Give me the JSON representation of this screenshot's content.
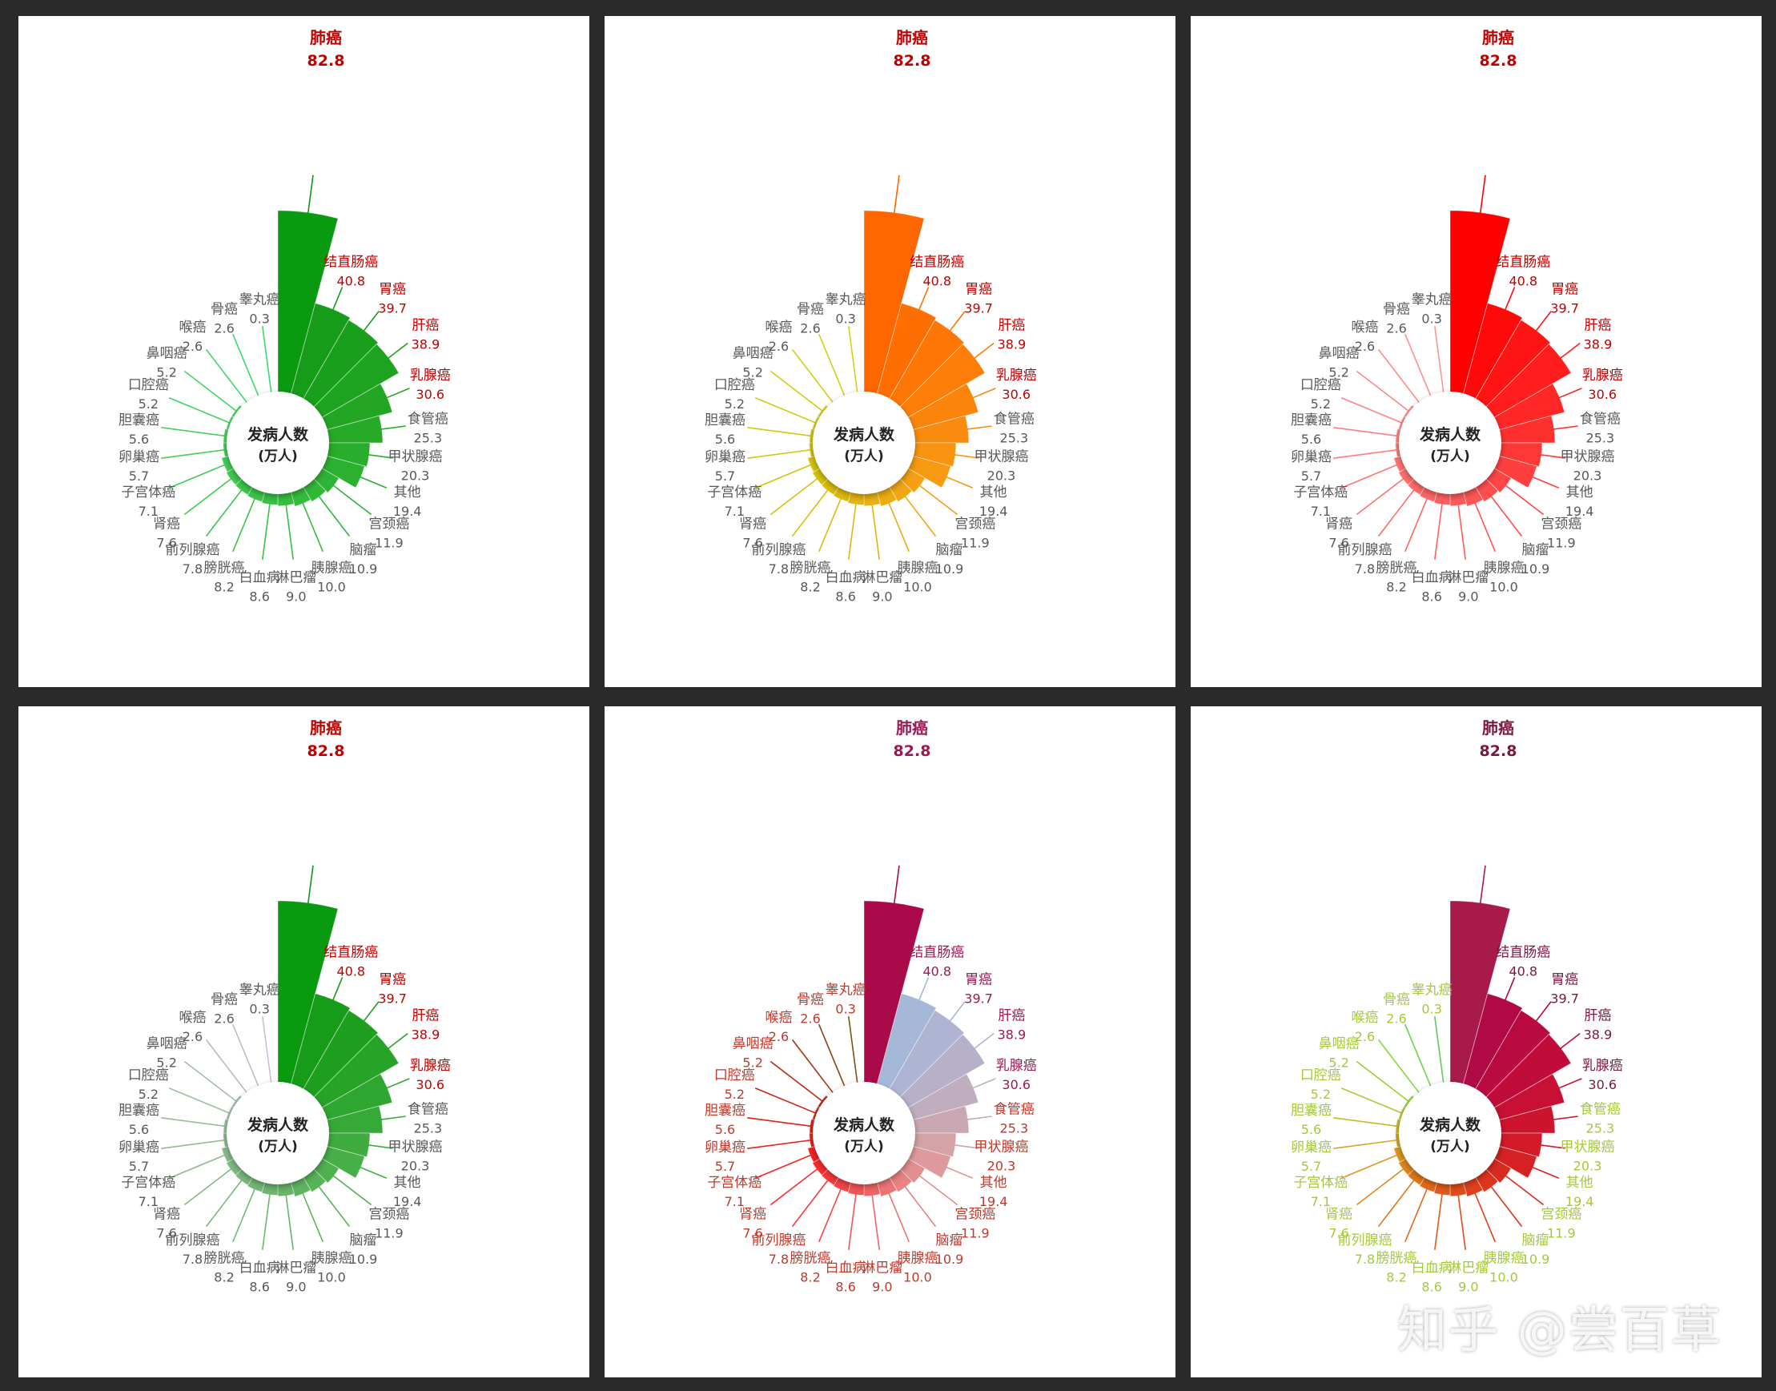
{
  "watermark": "知乎 @尝百草",
  "chart_data": {
    "type": "polar-bar",
    "center_title": "发病人数",
    "center_unit": "(万人)",
    "categories": [
      "肺癌",
      "结直肠癌",
      "胃癌",
      "肝癌",
      "乳腺癌",
      "食管癌",
      "甲状腺癌",
      "其他",
      "宫颈癌",
      "脑瘤",
      "胰腺癌",
      "淋巴瘤",
      "白血病",
      "膀胱癌",
      "前列腺癌",
      "肾癌",
      "子宫体癌",
      "卵巢癌",
      "胆囊癌",
      "口腔癌",
      "鼻咽癌",
      "喉癌",
      "骨癌",
      "睾丸癌"
    ],
    "value_labels": [
      "82.8",
      "40.8",
      "39.7",
      "38.9",
      "30.6",
      "25.3",
      "20.3",
      "19.4",
      "11.9",
      "10.9",
      "10.0",
      "9.0",
      "8.6",
      "8.2",
      "7.8",
      "7.6",
      "7.1",
      "5.7",
      "5.6",
      "5.2",
      "5.2",
      "2.6",
      "2.6",
      "0.3"
    ],
    "values": [
      82.8,
      40.8,
      39.7,
      38.9,
      30.6,
      25.3,
      20.3,
      19.4,
      11.9,
      10.9,
      10.0,
      9.0,
      8.6,
      8.2,
      7.8,
      7.6,
      7.1,
      5.7,
      5.6,
      5.2,
      5.2,
      2.6,
      2.6,
      0.3
    ],
    "panels": [
      {
        "label_colors": [
          "#c00000",
          "#c00000",
          "#c00000",
          "#c00000",
          "#c00000",
          "#595959",
          "#595959",
          "#595959",
          "#595959",
          "#595959",
          "#595959",
          "#595959",
          "#595959",
          "#595959",
          "#595959",
          "#595959",
          "#595959",
          "#595959",
          "#595959",
          "#595959",
          "#595959",
          "#595959",
          "#595959",
          "#595959"
        ],
        "bar_colors": [
          "#0a9a10",
          "#169c18",
          "#1a9f1c",
          "#1ea320",
          "#22a624",
          "#26aa28",
          "#28ad2c",
          "#2bb030",
          "#2eb434",
          "#31b838",
          "#33bb3c",
          "#36be40",
          "#38c144",
          "#3ac447",
          "#3cc74b",
          "#3fca4f",
          "#41cd53",
          "#43d057",
          "#44d25b",
          "#44d45f",
          "#42d664",
          "#3ed869",
          "#3bd96e",
          "#38da73"
        ]
      },
      {
        "label_colors": [
          "#c00000",
          "#c00000",
          "#c00000",
          "#c00000",
          "#c00000",
          "#595959",
          "#595959",
          "#595959",
          "#595959",
          "#595959",
          "#595959",
          "#595959",
          "#595959",
          "#595959",
          "#595959",
          "#595959",
          "#595959",
          "#595959",
          "#595959",
          "#595959",
          "#595959",
          "#595959",
          "#595959",
          "#595959"
        ],
        "bar_colors": [
          "#ff6600",
          "#fe6f03",
          "#fd7706",
          "#fc7e09",
          "#fb850c",
          "#f98c0e",
          "#f89410",
          "#f69a11",
          "#f4a012",
          "#f1a612",
          "#edab11",
          "#e9b010",
          "#e4b50e",
          "#dfba0c",
          "#dabe0b",
          "#d6c20b",
          "#d3c50b",
          "#d1c70b",
          "#d0c90c",
          "#d0cb0e",
          "#d1cd10",
          "#d2cf12",
          "#d4d014",
          "#d6d117"
        ]
      },
      {
        "label_colors": [
          "#c00000",
          "#c00000",
          "#c00000",
          "#c00000",
          "#c00000",
          "#595959",
          "#595959",
          "#595959",
          "#595959",
          "#595959",
          "#595959",
          "#595959",
          "#595959",
          "#595959",
          "#595959",
          "#595959",
          "#595959",
          "#595959",
          "#595959",
          "#595959",
          "#595959",
          "#595959",
          "#595959",
          "#595959"
        ],
        "bar_colors": [
          "#ff0000",
          "#ff0a0a",
          "#ff1414",
          "#ff1d1d",
          "#ff2626",
          "#ff2f2f",
          "#ff3737",
          "#ff3f3f",
          "#ff4646",
          "#ff4d4d",
          "#ff5454",
          "#ff5a5a",
          "#ff6060",
          "#ff6666",
          "#ff6b6b",
          "#ff7070",
          "#ff7575",
          "#ff7a7a",
          "#ff7f7f",
          "#ff8383",
          "#ff8888",
          "#ff8c8c",
          "#ff9090",
          "#ff9494"
        ]
      },
      {
        "label_colors": [
          "#c00000",
          "#c00000",
          "#c00000",
          "#c00000",
          "#c00000",
          "#595959",
          "#595959",
          "#595959",
          "#595959",
          "#595959",
          "#595959",
          "#595959",
          "#595959",
          "#595959",
          "#595959",
          "#595959",
          "#595959",
          "#595959",
          "#595959",
          "#595959",
          "#595959",
          "#595959",
          "#595959",
          "#595959"
        ],
        "bar_colors": [
          "#0a9a10",
          "#169c18",
          "#1e9f20",
          "#27a328",
          "#2fa630",
          "#37a938",
          "#40ac40",
          "#48ae48",
          "#50b050",
          "#57b258",
          "#5fb460",
          "#67b567",
          "#6eb66f",
          "#75b776",
          "#7cb87e",
          "#83b985",
          "#8aba8c",
          "#91bb93",
          "#98bc9a",
          "#9fbda1",
          "#a8bda9",
          "#b3bfb6",
          "#bdbfc6",
          "#c6c2d6"
        ]
      },
      {
        "label_colors": [
          "#9b1853",
          "#9b1853",
          "#9b1853",
          "#9b1853",
          "#9b1853",
          "#c0392b",
          "#c0392b",
          "#c0392b",
          "#c0392b",
          "#c0392b",
          "#c0392b",
          "#c0392b",
          "#c0392b",
          "#c0392b",
          "#c0392b",
          "#c0392b",
          "#c0392b",
          "#c0392b",
          "#c0392b",
          "#c0392b",
          "#c0392b",
          "#c0392b",
          "#c0392b",
          "#c0392b"
        ],
        "bar_colors": [
          "#aa0a4a",
          "#a6b8d8",
          "#aeb4d2",
          "#b6b0c8",
          "#c0adbe",
          "#caa8b3",
          "#d4a3a8",
          "#dc9a9c",
          "#e28f90",
          "#e88283",
          "#ec7475",
          "#f06466",
          "#f35556",
          "#f64547",
          "#f8393a",
          "#f92d2e",
          "#f52423",
          "#ec1f1b",
          "#de1f15",
          "#cc2412",
          "#b82b11",
          "#a33610",
          "#8d4312",
          "#7a5415"
        ]
      },
      {
        "label_colors": [
          "#7b1640",
          "#7b1640",
          "#7b1640",
          "#7b1640",
          "#7b1640",
          "#a5c93a",
          "#a5c93a",
          "#a5c93a",
          "#a5c93a",
          "#a5c93a",
          "#a5c93a",
          "#a5c93a",
          "#a5c93a",
          "#a5c93a",
          "#a5c93a",
          "#a5c93a",
          "#a5c93a",
          "#a5c93a",
          "#a5c93a",
          "#a5c93a",
          "#a5c93a",
          "#a5c93a",
          "#a5c93a",
          "#a5c93a"
        ],
        "bar_colors": [
          "#a81a4a",
          "#b00a46",
          "#b80a40",
          "#c00c3a",
          "#c71034",
          "#cd142e",
          "#d21a28",
          "#d62124",
          "#d92a20",
          "#dc341d",
          "#de401b",
          "#e04c1a",
          "#e15a1a",
          "#e2681b",
          "#e2771c",
          "#e0871e",
          "#dc9721",
          "#d4a825",
          "#c8b82a",
          "#b5c52f",
          "#9cd035",
          "#7fd93c",
          "#6ad646",
          "#5ec961"
        ]
      }
    ]
  }
}
